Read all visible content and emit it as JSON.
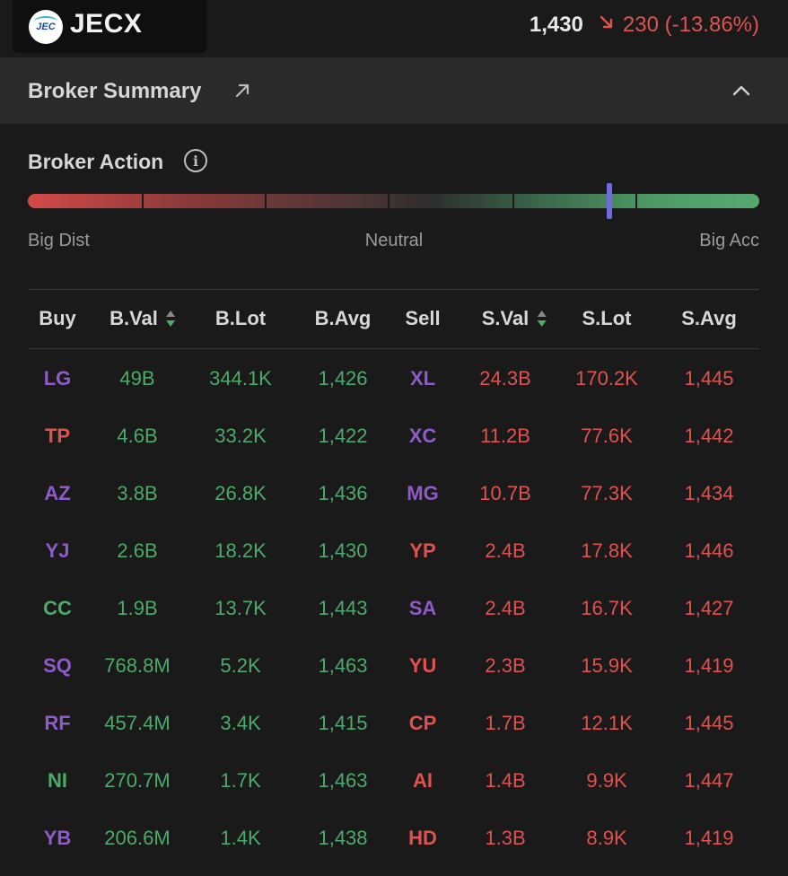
{
  "header": {
    "logo_text": "JEC",
    "ticker": "JECX",
    "price": "1,430",
    "change": "230 (-13.86%)",
    "change_direction_icon": "arrow-down-right-icon",
    "colors": {
      "down": "#e0524f",
      "up": "#4caa6a",
      "broker_purple": "#8e5bc8",
      "marker": "#6f6ae0"
    }
  },
  "section": {
    "title": "Broker Summary"
  },
  "broker_action": {
    "title": "Broker Action",
    "labels": {
      "left": "Big Dist",
      "center": "Neutral",
      "right": "Big Acc"
    },
    "marker_fraction": 0.795
  },
  "table": {
    "headers": {
      "buy": "Buy",
      "b_val": "B.Val",
      "b_lot": "B.Lot",
      "b_avg": "B.Avg",
      "sell": "Sell",
      "s_val": "S.Val",
      "s_lot": "S.Lot",
      "s_avg": "S.Avg"
    },
    "rows": [
      {
        "buy": "LG",
        "buy_color": "purple",
        "b_val": "49B",
        "b_lot": "344.1K",
        "b_avg": "1,426",
        "sell": "XL",
        "sell_color": "purple",
        "s_val": "24.3B",
        "s_lot": "170.2K",
        "s_avg": "1,445"
      },
      {
        "buy": "TP",
        "buy_color": "red",
        "b_val": "4.6B",
        "b_lot": "33.2K",
        "b_avg": "1,422",
        "sell": "XC",
        "sell_color": "purple",
        "s_val": "11.2B",
        "s_lot": "77.6K",
        "s_avg": "1,442"
      },
      {
        "buy": "AZ",
        "buy_color": "purple",
        "b_val": "3.8B",
        "b_lot": "26.8K",
        "b_avg": "1,436",
        "sell": "MG",
        "sell_color": "purple",
        "s_val": "10.7B",
        "s_lot": "77.3K",
        "s_avg": "1,434"
      },
      {
        "buy": "YJ",
        "buy_color": "purple",
        "b_val": "2.6B",
        "b_lot": "18.2K",
        "b_avg": "1,430",
        "sell": "YP",
        "sell_color": "red",
        "s_val": "2.4B",
        "s_lot": "17.8K",
        "s_avg": "1,446"
      },
      {
        "buy": "CC",
        "buy_color": "green",
        "b_val": "1.9B",
        "b_lot": "13.7K",
        "b_avg": "1,443",
        "sell": "SA",
        "sell_color": "purple",
        "s_val": "2.4B",
        "s_lot": "16.7K",
        "s_avg": "1,427"
      },
      {
        "buy": "SQ",
        "buy_color": "purple",
        "b_val": "768.8M",
        "b_lot": "5.2K",
        "b_avg": "1,463",
        "sell": "YU",
        "sell_color": "red",
        "s_val": "2.3B",
        "s_lot": "15.9K",
        "s_avg": "1,419"
      },
      {
        "buy": "RF",
        "buy_color": "purple",
        "b_val": "457.4M",
        "b_lot": "3.4K",
        "b_avg": "1,415",
        "sell": "CP",
        "sell_color": "red",
        "s_val": "1.7B",
        "s_lot": "12.1K",
        "s_avg": "1,445"
      },
      {
        "buy": "NI",
        "buy_color": "green",
        "b_val": "270.7M",
        "b_lot": "1.7K",
        "b_avg": "1,463",
        "sell": "AI",
        "sell_color": "red",
        "s_val": "1.4B",
        "s_lot": "9.9K",
        "s_avg": "1,447"
      },
      {
        "buy": "YB",
        "buy_color": "purple",
        "b_val": "206.6M",
        "b_lot": "1.4K",
        "b_avg": "1,438",
        "sell": "HD",
        "sell_color": "red",
        "s_val": "1.3B",
        "s_lot": "8.9K",
        "s_avg": "1,419"
      }
    ]
  }
}
